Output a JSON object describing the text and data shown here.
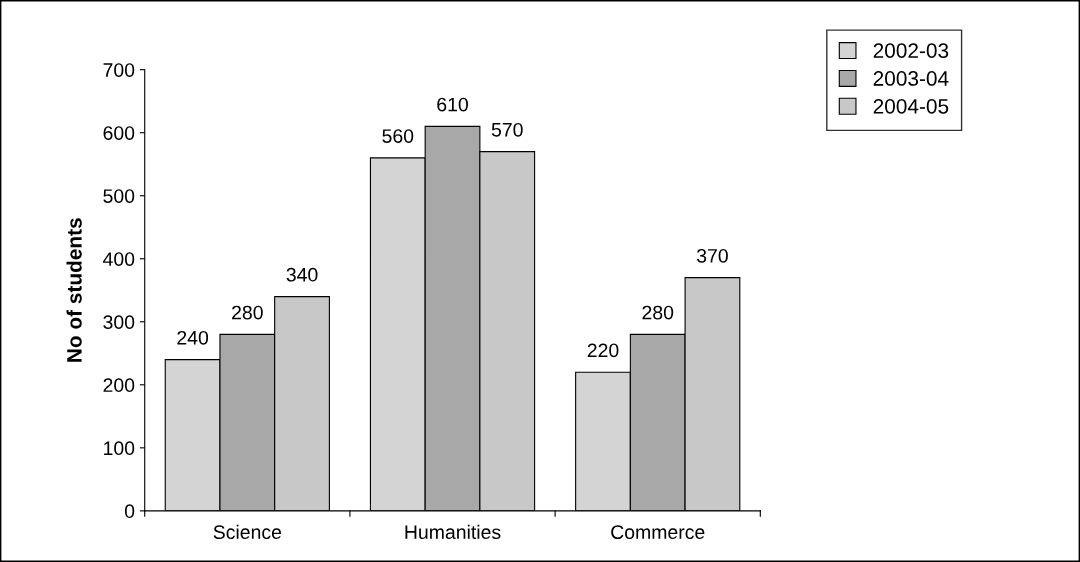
{
  "chart_data": {
    "type": "bar",
    "ylabel": "No of students",
    "categories": [
      "Science",
      "Humanities",
      "Commerce"
    ],
    "series": [
      {
        "name": "2002-03",
        "color": "#d4d4d4",
        "values": [
          240,
          560,
          220
        ]
      },
      {
        "name": "2003-04",
        "color": "#a8a8a8",
        "values": [
          280,
          610,
          280
        ]
      },
      {
        "name": "2004-05",
        "color": "#c8c8c8",
        "values": [
          340,
          570,
          370
        ]
      }
    ],
    "ylim": [
      0,
      700
    ],
    "yticks": [
      0,
      100,
      200,
      300,
      400,
      500,
      600,
      700
    ],
    "data_labels": true,
    "grid": false,
    "legend": "top right"
  }
}
